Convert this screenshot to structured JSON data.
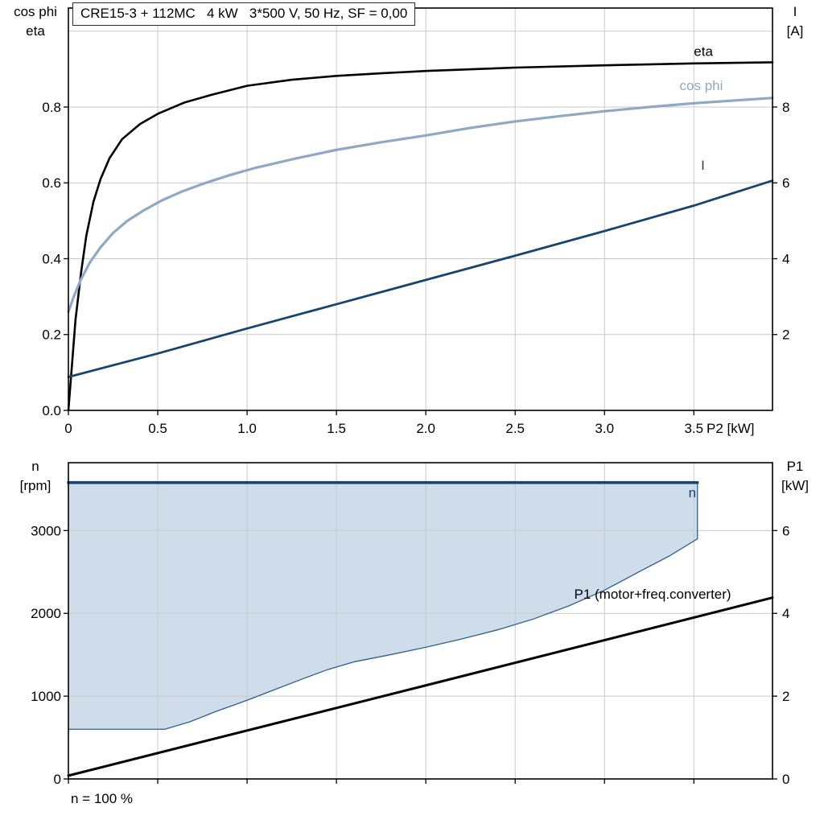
{
  "title": "CRE15-3 + 112MC   4 kW   3*500 V, 50 Hz, SF = 0,00",
  "footnote": "n = 100 %",
  "colors": {
    "eta": "#000000",
    "cos_phi": "#8fa9c4",
    "current": "#17456e",
    "n_line": "#17456e",
    "envelope_fill": "#cfdcea",
    "envelope_edge": "#2d5f8f",
    "p1_line": "#000000",
    "grid": "#c9c9c9",
    "frame": "#000000"
  },
  "chart_data": [
    {
      "type": "line",
      "title": "CRE15-3 + 112MC   4 kW   3*500 V, 50 Hz, SF = 0,00",
      "xlabel": "P2 [kW]",
      "ylabel_left": [
        "cos phi",
        "eta"
      ],
      "ylabel_right": [
        "I",
        "[A]"
      ],
      "xlim": [
        0,
        3.94
      ],
      "ylim_left": [
        0,
        1.061
      ],
      "ylim_right": [
        0,
        10.61
      ],
      "grid": true,
      "x_ticks": [
        0,
        0.5,
        1.0,
        1.5,
        2.0,
        2.5,
        3.0,
        3.5
      ],
      "x_tick_labels": [
        "0",
        "0.5",
        "1.0",
        "1.5",
        "2.0",
        "2.5",
        "3.0",
        "3.5"
      ],
      "y_ticks_left": [
        0.0,
        0.2,
        0.4,
        0.6,
        0.8
      ],
      "y_tick_labels_left": [
        "0.0",
        "0.2",
        "0.4",
        "0.6",
        "0.8"
      ],
      "y_grid": [
        0.2,
        0.4,
        0.6,
        0.8,
        1.0
      ],
      "y_ticks_right": [
        2,
        4,
        6,
        8
      ],
      "y_tick_labels_right": [
        "2",
        "4",
        "6",
        "8"
      ],
      "series": [
        {
          "name": "eta",
          "axis": "left",
          "color": "#000000",
          "width": 2.6,
          "x": [
            0,
            0.02,
            0.04,
            0.07,
            0.1,
            0.14,
            0.18,
            0.23,
            0.3,
            0.4,
            0.5,
            0.65,
            0.8,
            1.0,
            1.25,
            1.5,
            1.75,
            2.0,
            2.5,
            3.0,
            3.5,
            3.94
          ],
          "y": [
            0,
            0.12,
            0.24,
            0.36,
            0.46,
            0.55,
            0.61,
            0.665,
            0.715,
            0.755,
            0.782,
            0.812,
            0.832,
            0.856,
            0.872,
            0.882,
            0.889,
            0.895,
            0.904,
            0.91,
            0.915,
            0.918
          ],
          "label": {
            "text": "eta",
            "x": 3.5,
            "y": 0.935
          }
        },
        {
          "name": "cos phi",
          "axis": "left",
          "color": "#8fa9c4",
          "width": 3.2,
          "x": [
            0,
            0.03,
            0.07,
            0.12,
            0.18,
            0.25,
            0.33,
            0.42,
            0.52,
            0.63,
            0.75,
            0.9,
            1.05,
            1.25,
            1.5,
            1.75,
            2.0,
            2.25,
            2.5,
            2.75,
            3.0,
            3.25,
            3.5,
            3.94
          ],
          "y": [
            0.26,
            0.3,
            0.345,
            0.39,
            0.43,
            0.468,
            0.5,
            0.527,
            0.553,
            0.576,
            0.597,
            0.62,
            0.64,
            0.662,
            0.687,
            0.707,
            0.725,
            0.745,
            0.762,
            0.776,
            0.789,
            0.8,
            0.81,
            0.824
          ],
          "label": {
            "text": "cos phi",
            "x": 3.42,
            "y": 0.845
          }
        },
        {
          "name": "I",
          "axis": "right",
          "color": "#17456e",
          "width": 2.8,
          "x": [
            0,
            0.5,
            1.0,
            1.5,
            2.0,
            2.5,
            3.0,
            3.5,
            3.94
          ],
          "y": [
            0.88,
            1.5,
            2.16,
            2.8,
            3.44,
            4.08,
            4.73,
            5.4,
            6.06
          ],
          "label": {
            "text": "I",
            "x": 3.54,
            "y": 6.35
          }
        }
      ]
    },
    {
      "type": "area+line",
      "xlabel": "",
      "ylabel_left": [
        "n",
        "[rpm]"
      ],
      "ylabel_right": [
        "P1",
        "[kW]"
      ],
      "footnote": "n = 100 %",
      "xlim": [
        0,
        3.94
      ],
      "ylim_left": [
        0,
        3820
      ],
      "ylim_right": [
        0,
        7.64
      ],
      "grid": true,
      "x_ticks": [
        0,
        0.5,
        1.0,
        1.5,
        2.0,
        2.5,
        3.0,
        3.5
      ],
      "x_tick_labels": [],
      "y_ticks_left": [
        0,
        1000,
        2000,
        3000
      ],
      "y_tick_labels_left": [
        "0",
        "1000",
        "2000",
        "3000"
      ],
      "y_grid": [
        1000,
        2000,
        3000
      ],
      "y_ticks_right": [
        0,
        2,
        4,
        6
      ],
      "y_tick_labels_right": [
        "0",
        "2",
        "4",
        "6"
      ],
      "envelope": {
        "top": 3580,
        "x_right": 3.52,
        "lower_x": [
          0,
          0.54,
          0.68,
          0.82,
          1.0,
          1.15,
          1.3,
          1.45,
          1.6,
          1.8,
          2.0,
          2.2,
          2.4,
          2.6,
          2.8,
          3.0,
          3.2,
          3.36,
          3.52
        ],
        "lower_y": [
          600,
          600,
          690,
          810,
          950,
          1075,
          1200,
          1320,
          1415,
          1500,
          1590,
          1690,
          1800,
          1930,
          2090,
          2280,
          2510,
          2690,
          2900
        ]
      },
      "series": [
        {
          "name": "n",
          "axis": "left",
          "color": "#17456e",
          "width": 3.6,
          "x": [
            0,
            3.52
          ],
          "y": [
            3580,
            3580
          ],
          "label": {
            "text": "n",
            "x": 3.47,
            "y": 3400
          }
        },
        {
          "name": "P1",
          "axis": "right",
          "color": "#000000",
          "width": 3.0,
          "x": [
            0,
            2.0,
            3.94
          ],
          "y": [
            0.08,
            2.26,
            4.38
          ],
          "label": {
            "text": "P1 (motor+freq.converter)",
            "x": 2.83,
            "y": 4.35
          }
        }
      ]
    }
  ]
}
